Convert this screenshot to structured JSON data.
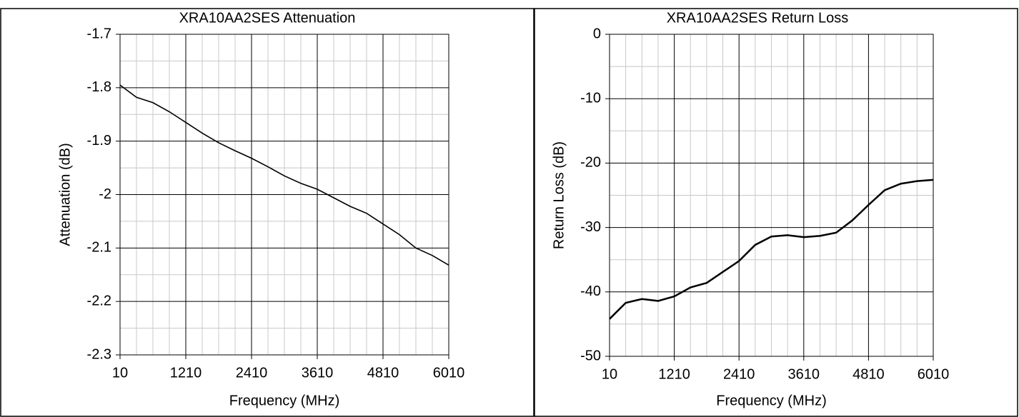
{
  "chart_data": [
    {
      "type": "line",
      "title": "XRA10AA2SES Attenuation",
      "x_label": "Frequency (MHz)",
      "y_label": "Attenuation (dB)",
      "x": [
        10,
        310,
        610,
        910,
        1210,
        1510,
        1810,
        2110,
        2410,
        2710,
        3010,
        3310,
        3610,
        3910,
        4210,
        4510,
        4810,
        5110,
        5410,
        5710,
        6010
      ],
      "series": [
        {
          "name": "Attenuation",
          "color": "#000000",
          "values": [
            -1.795,
            -1.818,
            -1.828,
            -1.845,
            -1.865,
            -1.885,
            -1.903,
            -1.918,
            -1.932,
            -1.948,
            -1.965,
            -1.979,
            -1.99,
            -2.006,
            -2.022,
            -2.035,
            -2.055,
            -2.075,
            -2.1,
            -2.114,
            -2.132
          ]
        }
      ],
      "xlim": [
        10,
        6010
      ],
      "xticks": [
        10,
        1210,
        2410,
        3610,
        4810,
        6010
      ],
      "ylim": [
        -2.3,
        -1.7
      ],
      "yticks": [
        -2.3,
        -2.2,
        -2.1,
        -2,
        -1.9,
        -1.8,
        -1.7
      ],
      "grid": true,
      "minor_grid": true
    },
    {
      "type": "line",
      "title": "XRA10AA2SES Return Loss",
      "x_label": "Frequency (MHz)",
      "y_label": "Return Loss (dB)",
      "x": [
        10,
        310,
        610,
        910,
        1210,
        1510,
        1810,
        2110,
        2410,
        2710,
        3010,
        3310,
        3610,
        3910,
        4210,
        4510,
        4810,
        5110,
        5410,
        5710,
        6010
      ],
      "series": [
        {
          "name": "Return Loss",
          "color": "#000000",
          "values": [
            -44.2,
            -41.7,
            -41.1,
            -41.4,
            -40.7,
            -39.3,
            -38.6,
            -36.9,
            -35.2,
            -32.7,
            -31.4,
            -31.2,
            -31.5,
            -31.3,
            -30.8,
            -28.9,
            -26.5,
            -24.2,
            -23.2,
            -22.8,
            -22.6
          ]
        }
      ],
      "xlim": [
        10,
        6010
      ],
      "xticks": [
        10,
        1210,
        2410,
        3610,
        4810,
        6010
      ],
      "ylim": [
        -50,
        0
      ],
      "yticks": [
        -50,
        -40,
        -30,
        -20,
        -10,
        0
      ],
      "grid": true,
      "minor_grid": true
    }
  ]
}
